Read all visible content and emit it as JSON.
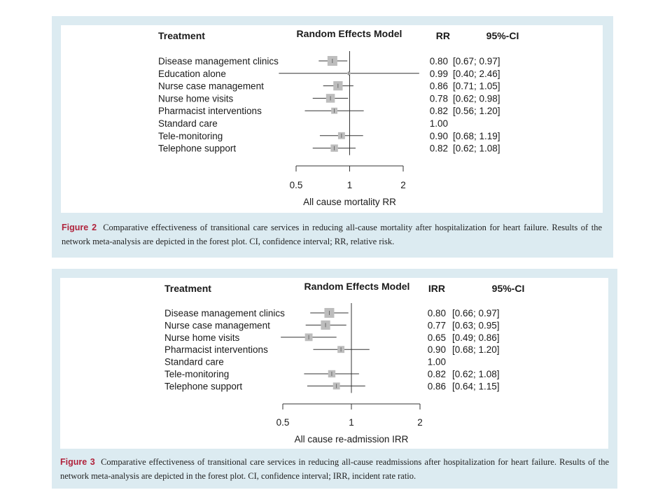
{
  "colors": {
    "panel_bg": "#dcebf1",
    "figure_label": "#b0233c",
    "box_fill": "#bdbdbd",
    "line": "#333333"
  },
  "chart_data": [
    {
      "type": "forest",
      "header": {
        "treatment": "Treatment",
        "model": "Random Effects Model",
        "effect": "RR",
        "ci": "95%-CI"
      },
      "xlabel": "All cause mortality RR",
      "x_scale": "log",
      "xlim": [
        0.5,
        2
      ],
      "ticks": [
        0.5,
        1,
        2
      ],
      "tick_labels": [
        "0.5",
        "1",
        "2"
      ],
      "rows": [
        {
          "label": "Disease management clinics",
          "value": 0.8,
          "ci": [
            0.67,
            0.97
          ],
          "value_text": "0.80",
          "ci_text": "[0.67; 0.97]",
          "weight": 1.0
        },
        {
          "label": "Education alone",
          "value": 0.99,
          "ci": [
            0.4,
            2.46
          ],
          "value_text": "0.99",
          "ci_text": "[0.40; 2.46]",
          "weight": 0.1
        },
        {
          "label": "Nurse case management",
          "value": 0.86,
          "ci": [
            0.71,
            1.05
          ],
          "value_text": "0.86",
          "ci_text": "[0.71; 1.05]",
          "weight": 0.9
        },
        {
          "label": "Nurse home visits",
          "value": 0.78,
          "ci": [
            0.62,
            0.98
          ],
          "value_text": "0.78",
          "ci_text": "[0.62; 0.98]",
          "weight": 0.8
        },
        {
          "label": "Pharmacist interventions",
          "value": 0.82,
          "ci": [
            0.56,
            1.2
          ],
          "value_text": "0.82",
          "ci_text": "[0.56; 1.20]",
          "weight": 0.4
        },
        {
          "label": "Standard care",
          "value": 1.0,
          "ci": null,
          "value_text": "1.00",
          "ci_text": "",
          "weight": 0
        },
        {
          "label": "Tele-monitoring",
          "value": 0.9,
          "ci": [
            0.68,
            1.19
          ],
          "value_text": "0.90",
          "ci_text": "[0.68; 1.19]",
          "weight": 0.5
        },
        {
          "label": "Telephone support",
          "value": 0.82,
          "ci": [
            0.62,
            1.08
          ],
          "value_text": "0.82",
          "ci_text": "[0.62; 1.08]",
          "weight": 0.55
        }
      ]
    },
    {
      "type": "forest",
      "header": {
        "treatment": "Treatment",
        "model": "Random Effects Model",
        "effect": "IRR",
        "ci": "95%-CI"
      },
      "xlabel": "All cause re-admission IRR",
      "x_scale": "log",
      "xlim": [
        0.5,
        2
      ],
      "ticks": [
        0.5,
        1,
        2
      ],
      "tick_labels": [
        "0.5",
        "1",
        "2"
      ],
      "rows": [
        {
          "label": "Disease management clinics",
          "value": 0.8,
          "ci": [
            0.66,
            0.97
          ],
          "value_text": "0.80",
          "ci_text": "[0.66; 0.97]",
          "weight": 1.0
        },
        {
          "label": "Nurse case management",
          "value": 0.77,
          "ci": [
            0.63,
            0.95
          ],
          "value_text": "0.77",
          "ci_text": "[0.63; 0.95]",
          "weight": 0.9
        },
        {
          "label": "Nurse home visits",
          "value": 0.65,
          "ci": [
            0.49,
            0.86
          ],
          "value_text": "0.65",
          "ci_text": "[0.49; 0.86]",
          "weight": 0.6
        },
        {
          "label": "Pharmacist  interventions",
          "value": 0.9,
          "ci": [
            0.68,
            1.2
          ],
          "value_text": "0.90",
          "ci_text": "[0.68; 1.20]",
          "weight": 0.5
        },
        {
          "label": "Standard care",
          "value": 1.0,
          "ci": null,
          "value_text": "1.00",
          "ci_text": "",
          "weight": 0
        },
        {
          "label": "Tele-monitoring",
          "value": 0.82,
          "ci": [
            0.62,
            1.08
          ],
          "value_text": "0.82",
          "ci_text": "[0.62; 1.08]",
          "weight": 0.55
        },
        {
          "label": "Telephone support",
          "value": 0.86,
          "ci": [
            0.64,
            1.15
          ],
          "value_text": "0.86",
          "ci_text": "[0.64; 1.15]",
          "weight": 0.5
        }
      ]
    }
  ],
  "captions": [
    {
      "label": "Figure 2",
      "text": "Comparative effectiveness of transitional care services in reducing all-cause mortality after hospitalization for heart failure. Results of the network meta-analysis are depicted in the forest plot. CI, confidence interval; RR, relative risk."
    },
    {
      "label": "Figure 3",
      "text": "Comparative effectiveness of transitional care services in reducing all-cause readmissions after hospitalization for heart failure. Results of the network meta-analysis are depicted in the forest plot. CI, confidence interval; IRR, incident rate ratio."
    }
  ]
}
